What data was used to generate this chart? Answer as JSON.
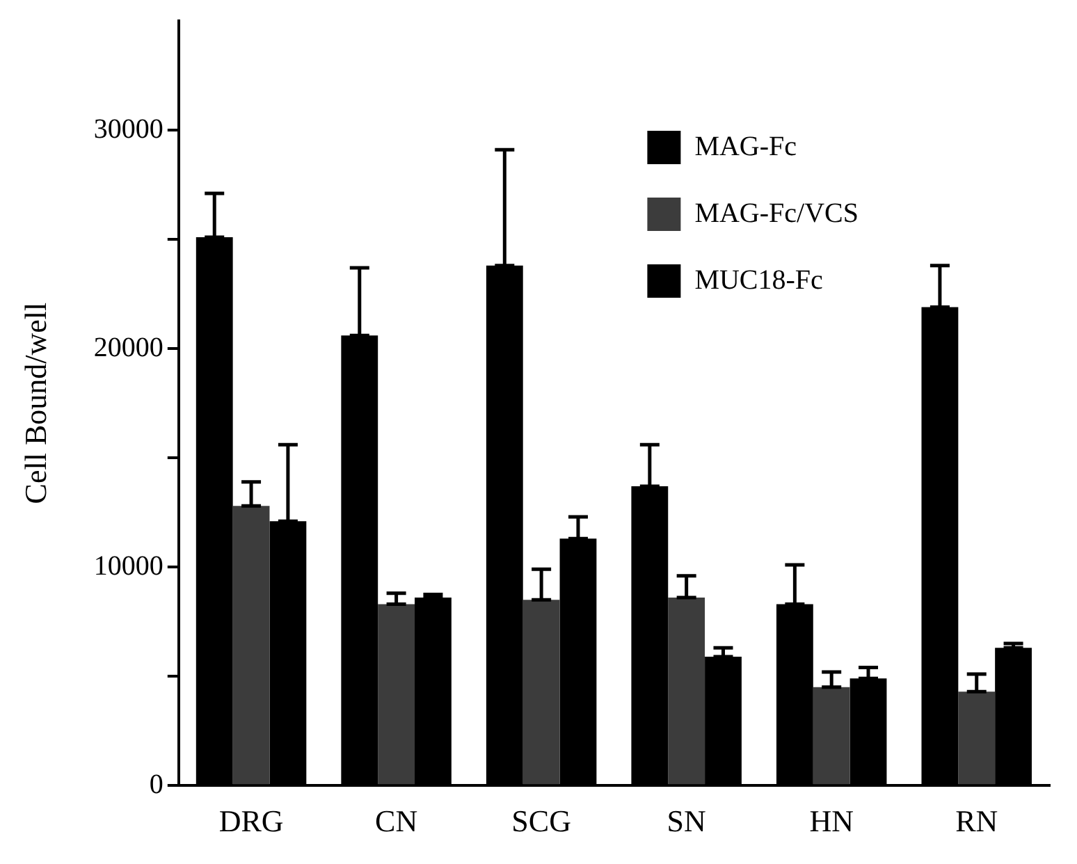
{
  "chart_data": {
    "type": "bar",
    "ylabel": "Cell Bound/well",
    "categories": [
      "DRG",
      "CN",
      "SCG",
      "SN",
      "HN",
      "RN"
    ],
    "series": [
      {
        "name": "MAG-Fc",
        "color": "#000000",
        "values": [
          25100,
          20600,
          23800,
          13700,
          8300,
          21900
        ],
        "errors": [
          [
            25100,
            27100
          ],
          [
            20600,
            23700
          ],
          [
            23800,
            29100
          ],
          [
            13700,
            15600
          ],
          [
            8300,
            10100
          ],
          [
            21900,
            23800
          ]
        ]
      },
      {
        "name": "MAG-Fc/VCS",
        "color": "#3c3c3c",
        "values": [
          12800,
          8300,
          8500,
          8600,
          4500,
          4300
        ],
        "errors": [
          [
            12800,
            13900
          ],
          [
            8300,
            8800
          ],
          [
            8500,
            9900
          ],
          [
            8600,
            9600
          ],
          [
            4500,
            5200
          ],
          [
            4300,
            5100
          ]
        ]
      },
      {
        "name": "MUC18-Fc",
        "color": "#000000",
        "values": [
          12100,
          8600,
          11300,
          5900,
          4900,
          6300
        ],
        "errors": [
          [
            12100,
            15600
          ],
          [
            8600,
            8750
          ],
          [
            11300,
            12300
          ],
          [
            5900,
            6300
          ],
          [
            4900,
            5400
          ],
          [
            6300,
            6500
          ]
        ]
      }
    ],
    "ylim": [
      0,
      35000
    ],
    "yticks": [
      0,
      {
        "value": 5000,
        "label": null
      },
      10000,
      {
        "value": 15000,
        "label": null
      },
      20000,
      {
        "value": 25000,
        "label": null
      },
      30000
    ],
    "grid": false,
    "legend": "top right"
  }
}
